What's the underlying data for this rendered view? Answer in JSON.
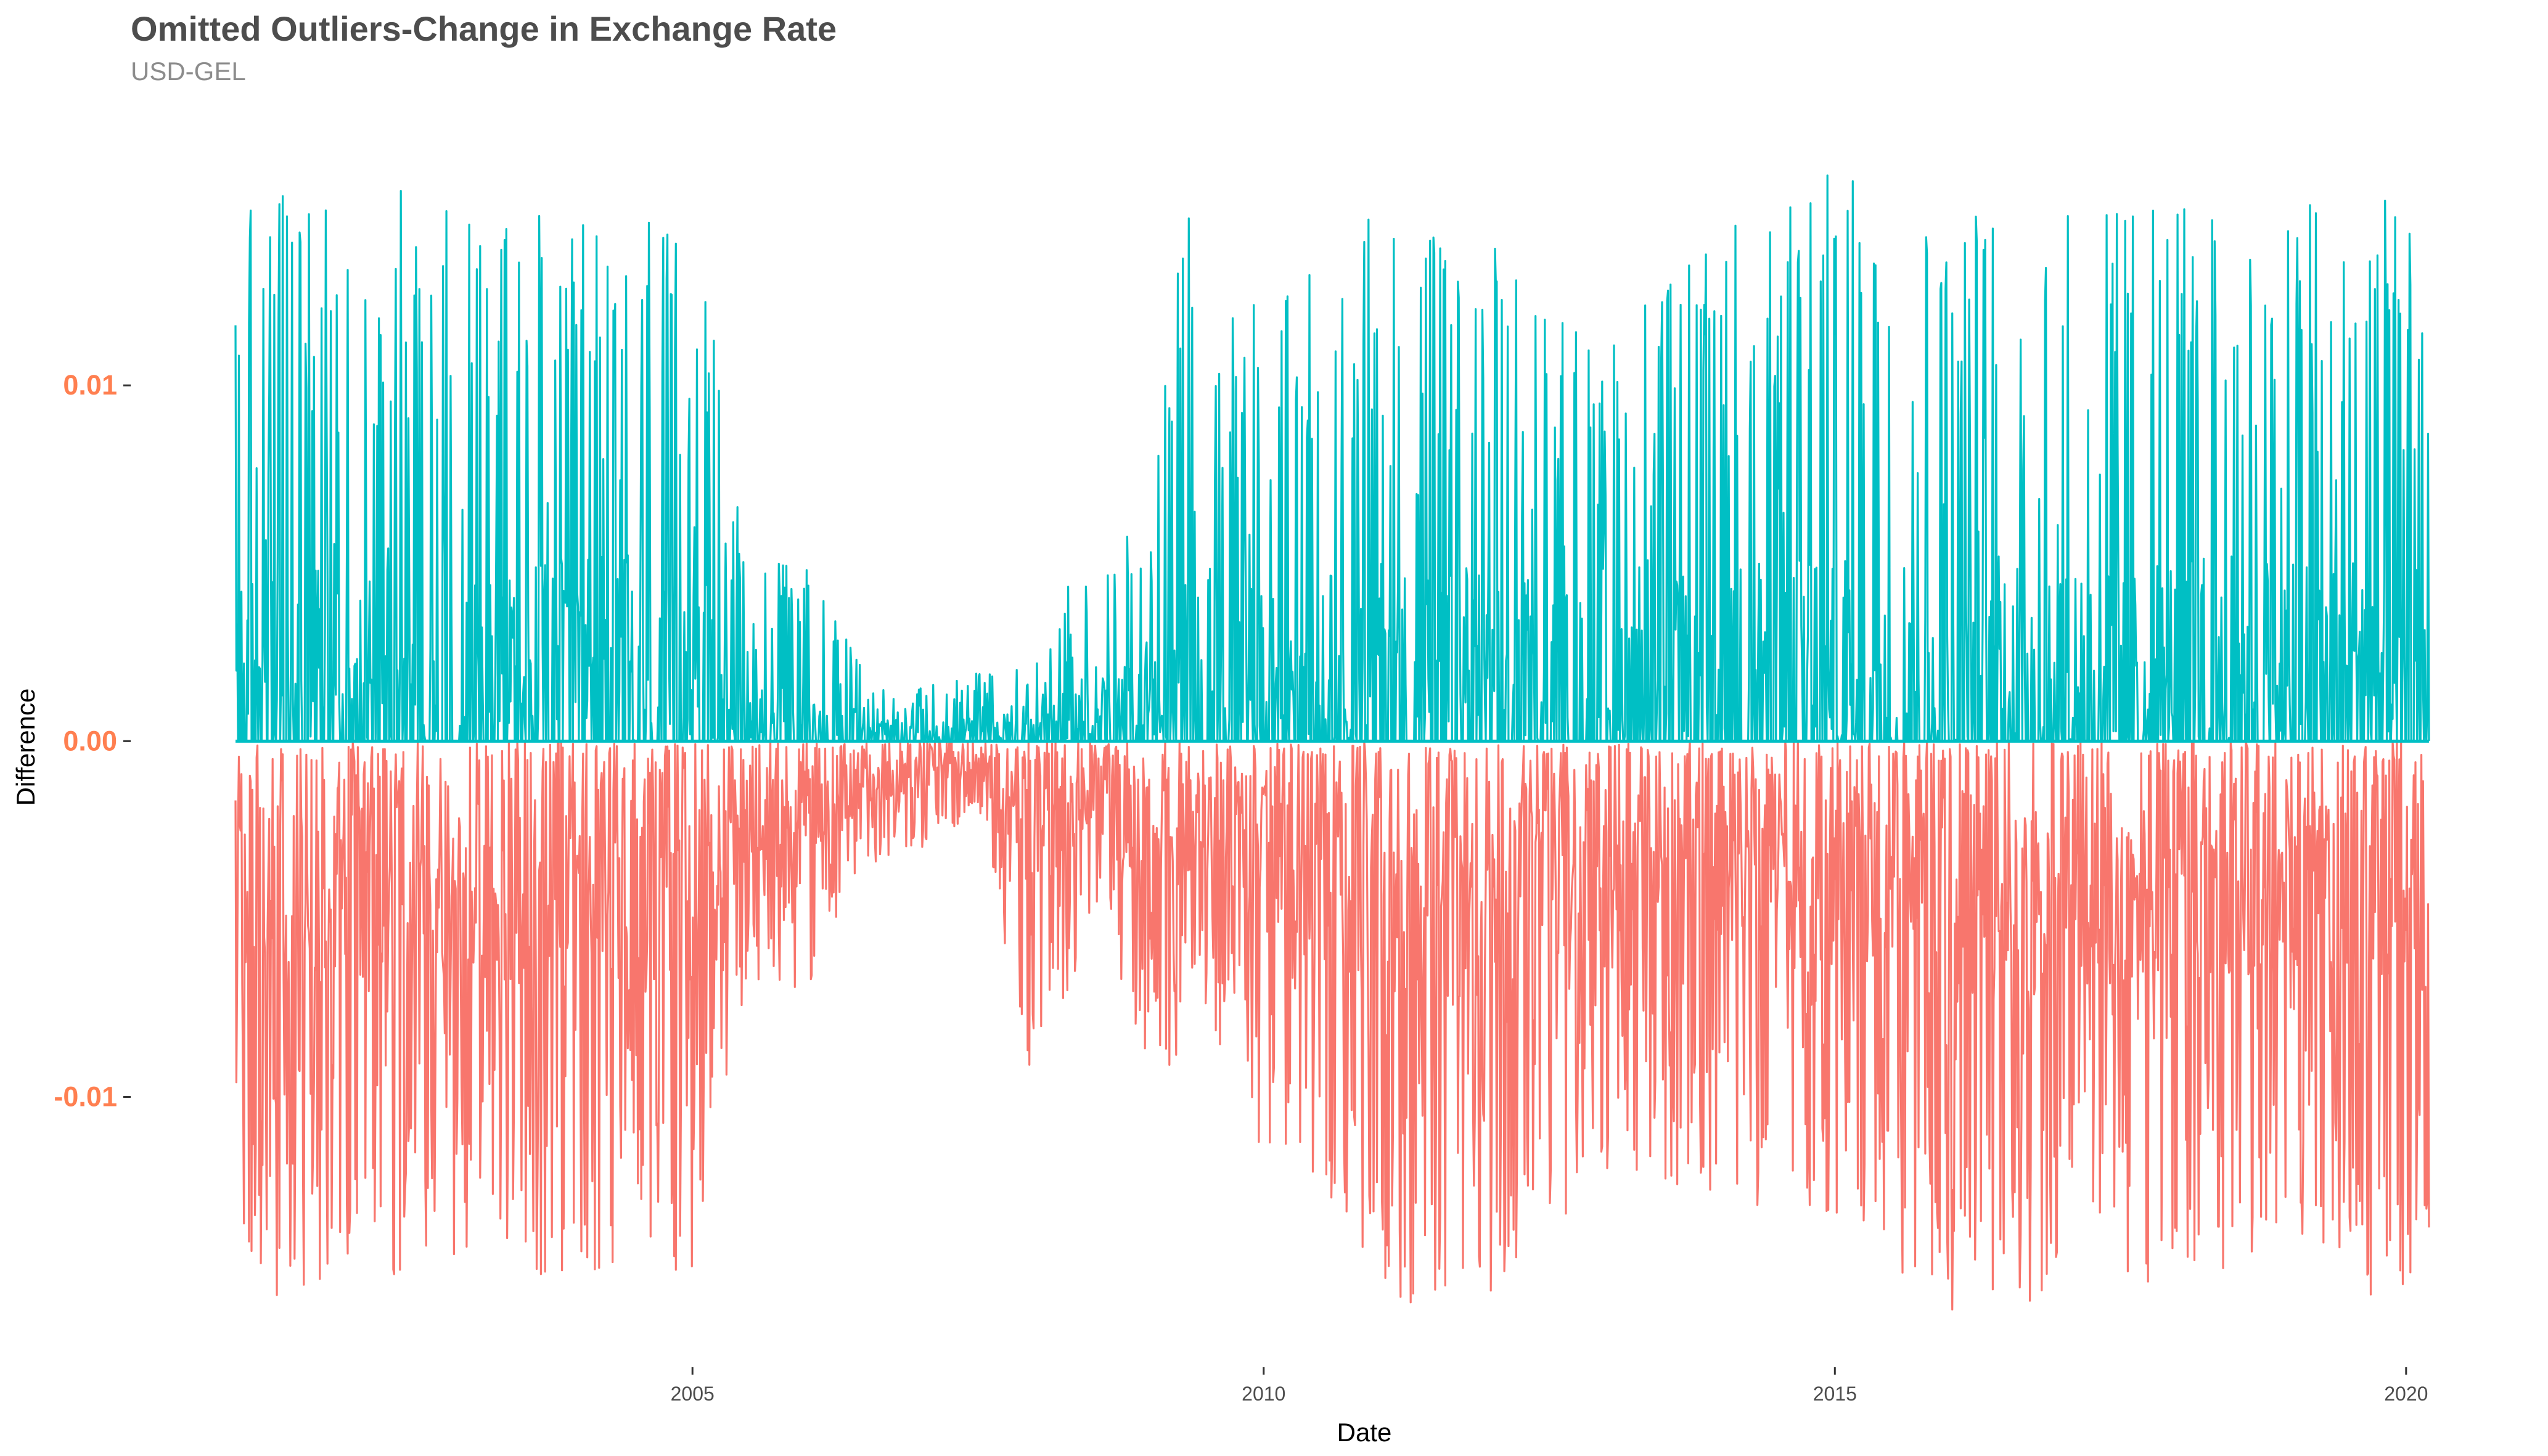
{
  "chart_data": {
    "type": "line",
    "title": "Omitted Outliers-Change in Exchange Rate",
    "subtitle": "USD-GEL",
    "xlabel": "Date",
    "ylabel": "Difference",
    "xlim": [
      2001.0,
      2020.6
    ],
    "ylim": [
      -0.0168,
      0.0165
    ],
    "x_ticks": [
      {
        "label": "2005",
        "value": 2005
      },
      {
        "label": "2010",
        "value": 2010
      },
      {
        "label": "2015",
        "value": 2015
      },
      {
        "label": "2020",
        "value": 2020
      }
    ],
    "y_ticks": [
      {
        "label": "0.01",
        "value": 0.01
      },
      {
        "label": "0.00",
        "value": 0.0
      },
      {
        "label": "-0.01",
        "value": -0.01
      }
    ],
    "grid": false,
    "legend": "none",
    "y_tick_color": "#ff7f50",
    "series": [
      {
        "color": "#00bfc4",
        "sign": "positive",
        "x_start": 2001.0,
        "x_end": 2020.2,
        "envelope": [
          {
            "x": 2001.0,
            "y": 0.015
          },
          {
            "x": 2002.0,
            "y": 0.016
          },
          {
            "x": 2003.0,
            "y": 0.015
          },
          {
            "x": 2004.0,
            "y": 0.015
          },
          {
            "x": 2005.0,
            "y": 0.015
          },
          {
            "x": 2005.5,
            "y": 0.005
          },
          {
            "x": 2006.0,
            "y": 0.005
          },
          {
            "x": 2006.5,
            "y": 0.002
          },
          {
            "x": 2007.0,
            "y": 0.0015
          },
          {
            "x": 2007.5,
            "y": 0.002
          },
          {
            "x": 2008.0,
            "y": 0.0025
          },
          {
            "x": 2008.5,
            "y": 0.006
          },
          {
            "x": 2009.0,
            "y": 0.006
          },
          {
            "x": 2009.3,
            "y": 0.015
          },
          {
            "x": 2010.0,
            "y": 0.012
          },
          {
            "x": 2011.0,
            "y": 0.015
          },
          {
            "x": 2012.0,
            "y": 0.014
          },
          {
            "x": 2013.0,
            "y": 0.011
          },
          {
            "x": 2014.0,
            "y": 0.0155
          },
          {
            "x": 2015.0,
            "y": 0.016
          },
          {
            "x": 2016.0,
            "y": 0.015
          },
          {
            "x": 2017.0,
            "y": 0.015
          },
          {
            "x": 2018.0,
            "y": 0.015
          },
          {
            "x": 2019.0,
            "y": 0.015
          },
          {
            "x": 2019.6,
            "y": 0.016
          },
          {
            "x": 2020.2,
            "y": 0.014
          }
        ]
      },
      {
        "color": "#f8766d",
        "sign": "negative",
        "x_start": 2001.0,
        "x_end": 2020.2,
        "envelope": [
          {
            "x": 2001.0,
            "y": -0.016
          },
          {
            "x": 2002.0,
            "y": -0.015
          },
          {
            "x": 2003.0,
            "y": -0.015
          },
          {
            "x": 2004.0,
            "y": -0.015
          },
          {
            "x": 2005.0,
            "y": -0.015
          },
          {
            "x": 2005.5,
            "y": -0.007
          },
          {
            "x": 2006.0,
            "y": -0.007
          },
          {
            "x": 2006.5,
            "y": -0.004
          },
          {
            "x": 2007.0,
            "y": -0.003
          },
          {
            "x": 2007.5,
            "y": -0.002
          },
          {
            "x": 2008.0,
            "y": -0.01
          },
          {
            "x": 2008.5,
            "y": -0.005
          },
          {
            "x": 2009.0,
            "y": -0.01
          },
          {
            "x": 2009.5,
            "y": -0.008
          },
          {
            "x": 2010.0,
            "y": -0.012
          },
          {
            "x": 2011.0,
            "y": -0.016
          },
          {
            "x": 2012.0,
            "y": -0.016
          },
          {
            "x": 2013.0,
            "y": -0.012
          },
          {
            "x": 2014.0,
            "y": -0.013
          },
          {
            "x": 2015.0,
            "y": -0.014
          },
          {
            "x": 2016.0,
            "y": -0.016
          },
          {
            "x": 2017.0,
            "y": -0.016
          },
          {
            "x": 2018.0,
            "y": -0.015
          },
          {
            "x": 2019.0,
            "y": -0.015
          },
          {
            "x": 2020.2,
            "y": -0.016
          }
        ]
      }
    ]
  }
}
